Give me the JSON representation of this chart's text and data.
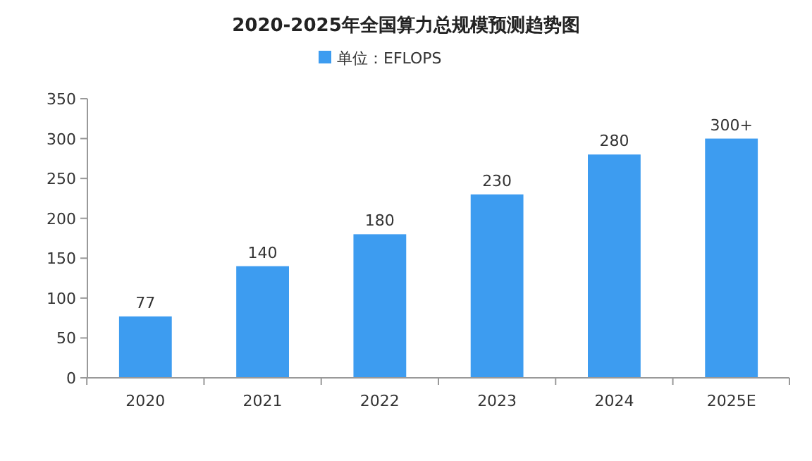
{
  "chart_data": {
    "type": "bar",
    "title": "2020-2025年全国算力总规模预测趋势图",
    "categories": [
      "2020",
      "2021",
      "2022",
      "2023",
      "2024",
      "2025E"
    ],
    "series": [
      {
        "name": "单位：EFLOPS",
        "color": "#3d9cf0",
        "values": [
          77,
          140,
          180,
          230,
          280,
          300
        ],
        "value_labels": [
          "77",
          "140",
          "180",
          "230",
          "280",
          "300+"
        ]
      }
    ],
    "ylim": [
      0,
      350
    ],
    "yticks": [
      0,
      50,
      100,
      150,
      200,
      250,
      300,
      350
    ],
    "grid": false,
    "legend": "top"
  }
}
